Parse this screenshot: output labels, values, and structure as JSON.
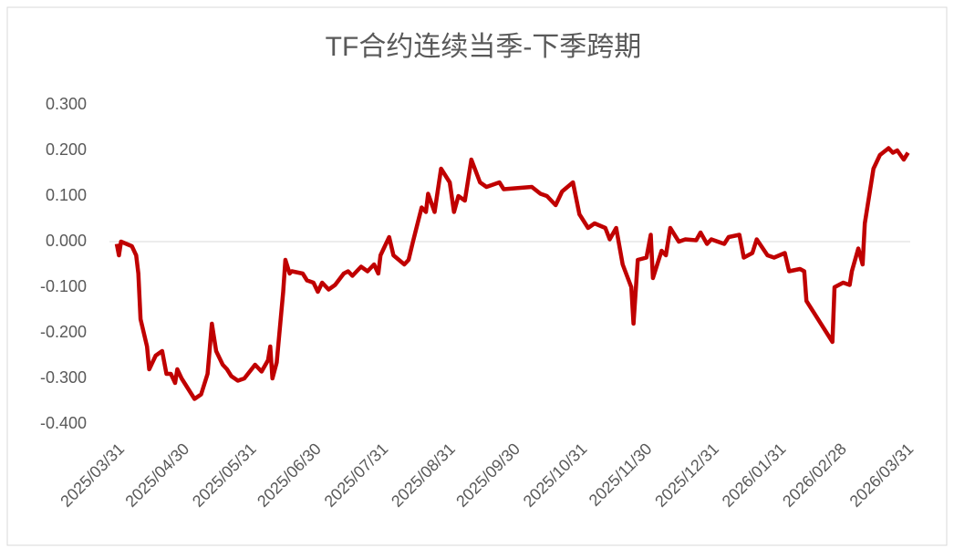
{
  "chart_data": {
    "type": "line",
    "title": "TF合约连续当季-下季跨期",
    "x": [
      "2025/03/31",
      "2025/04/01",
      "2025/04/02",
      "2025/04/07",
      "2025/04/09",
      "2025/04/10",
      "2025/04/11",
      "2025/04/14",
      "2025/04/15",
      "2025/04/18",
      "2025/04/21",
      "2025/04/23",
      "2025/04/25",
      "2025/04/27",
      "2025/04/28",
      "2025/04/30",
      "2025/05/06",
      "2025/05/09",
      "2025/05/12",
      "2025/05/14",
      "2025/05/16",
      "2025/05/19",
      "2025/05/21",
      "2025/05/23",
      "2025/05/26",
      "2025/05/29",
      "2025/06/03",
      "2025/06/06",
      "2025/06/09",
      "2025/06/10",
      "2025/06/11",
      "2025/06/13",
      "2025/06/16",
      "2025/06/17",
      "2025/06/19",
      "2025/06/20",
      "2025/06/25",
      "2025/06/27",
      "2025/06/30",
      "2025/07/02",
      "2025/07/04",
      "2025/07/07",
      "2025/07/10",
      "2025/07/14",
      "2025/07/16",
      "2025/07/18",
      "2025/07/22",
      "2025/07/25",
      "2025/07/28",
      "2025/07/30",
      "2025/07/31",
      "2025/08/04",
      "2025/08/06",
      "2025/08/11",
      "2025/08/13",
      "2025/08/15",
      "2025/08/19",
      "2025/08/21",
      "2025/08/22",
      "2025/08/25",
      "2025/08/28",
      "2025/09/01",
      "2025/09/03",
      "2025/09/05",
      "2025/09/08",
      "2025/09/11",
      "2025/09/15",
      "2025/09/18",
      "2025/09/24",
      "2025/09/26",
      "2025/10/09",
      "2025/10/13",
      "2025/10/16",
      "2025/10/20",
      "2025/10/23",
      "2025/10/28",
      "2025/10/31",
      "2025/11/04",
      "2025/11/07",
      "2025/11/12",
      "2025/11/14",
      "2025/11/17",
      "2025/11/20",
      "2025/11/24",
      "2025/11/25",
      "2025/11/27",
      "2025/12/01",
      "2025/12/03",
      "2025/12/04",
      "2025/12/08",
      "2025/12/10",
      "2025/12/12",
      "2025/12/16",
      "2025/12/19",
      "2025/12/24",
      "2025/12/26",
      "2025/12/29",
      "2025/12/31",
      "2026/01/06",
      "2026/01/08",
      "2026/01/13",
      "2026/01/15",
      "2026/01/19",
      "2026/01/21",
      "2026/01/26",
      "2026/01/29",
      "2026/02/03",
      "2026/02/05",
      "2026/02/10",
      "2026/02/12",
      "2026/02/13",
      "2026/02/25",
      "2026/02/26",
      "2026/03/02",
      "2026/03/05",
      "2026/03/06",
      "2026/03/09",
      "2026/03/11",
      "2026/03/12",
      "2026/03/16",
      "2026/03/19",
      "2026/03/23",
      "2026/03/25",
      "2026/03/27",
      "2026/03/30",
      "2026/04/01"
    ],
    "series": [
      {
        "name": "TF合约连续当季-下季跨期",
        "color": "#c00000",
        "values": [
          -0.005,
          -0.03,
          0.0,
          -0.01,
          -0.03,
          -0.07,
          -0.17,
          -0.23,
          -0.28,
          -0.25,
          -0.24,
          -0.29,
          -0.29,
          -0.31,
          -0.28,
          -0.3,
          -0.345,
          -0.335,
          -0.29,
          -0.18,
          -0.24,
          -0.27,
          -0.28,
          -0.295,
          -0.305,
          -0.3,
          -0.27,
          -0.285,
          -0.26,
          -0.23,
          -0.3,
          -0.265,
          -0.11,
          -0.04,
          -0.07,
          -0.065,
          -0.07,
          -0.085,
          -0.09,
          -0.11,
          -0.09,
          -0.105,
          -0.095,
          -0.07,
          -0.065,
          -0.075,
          -0.055,
          -0.065,
          -0.05,
          -0.07,
          -0.03,
          0.01,
          -0.03,
          -0.05,
          -0.04,
          0.0,
          0.075,
          0.065,
          0.105,
          0.065,
          0.16,
          0.13,
          0.065,
          0.1,
          0.09,
          0.18,
          0.13,
          0.12,
          0.13,
          0.115,
          0.12,
          0.105,
          0.1,
          0.08,
          0.11,
          0.13,
          0.06,
          0.03,
          0.04,
          0.03,
          0.005,
          0.03,
          -0.05,
          -0.1,
          -0.18,
          -0.04,
          -0.035,
          0.015,
          -0.08,
          -0.02,
          -0.03,
          0.03,
          0.0,
          0.005,
          0.003,
          0.02,
          -0.005,
          0.005,
          -0.005,
          0.01,
          0.015,
          -0.035,
          -0.025,
          0.005,
          -0.03,
          -0.035,
          -0.025,
          -0.065,
          -0.06,
          -0.065,
          -0.13,
          -0.22,
          -0.1,
          -0.09,
          -0.095,
          -0.065,
          -0.015,
          -0.05,
          0.04,
          0.16,
          0.19,
          0.205,
          0.195,
          0.2,
          0.18,
          0.195
        ]
      }
    ],
    "xlim": [
      "2025/03/31",
      "2026/04/02"
    ],
    "xticks": [
      "2025/03/31",
      "2025/04/30",
      "2025/05/31",
      "2025/06/30",
      "2025/07/31",
      "2025/08/31",
      "2025/09/30",
      "2025/10/31",
      "2025/11/30",
      "2025/12/31",
      "2026/01/31",
      "2026/02/28",
      "2026/03/31"
    ],
    "ylim": [
      -0.4,
      0.3
    ],
    "yticks": [
      {
        "value": -0.4,
        "label": "-0.400"
      },
      {
        "value": -0.3,
        "label": "-0.300"
      },
      {
        "value": -0.2,
        "label": "-0.200"
      },
      {
        "value": -0.1,
        "label": "-0.100"
      },
      {
        "value": 0,
        "label": "0.000"
      },
      {
        "value": 0.1,
        "label": "0.100"
      },
      {
        "value": 0.2,
        "label": "0.200"
      },
      {
        "value": 0.3,
        "label": "0.300"
      }
    ],
    "grid": false
  }
}
